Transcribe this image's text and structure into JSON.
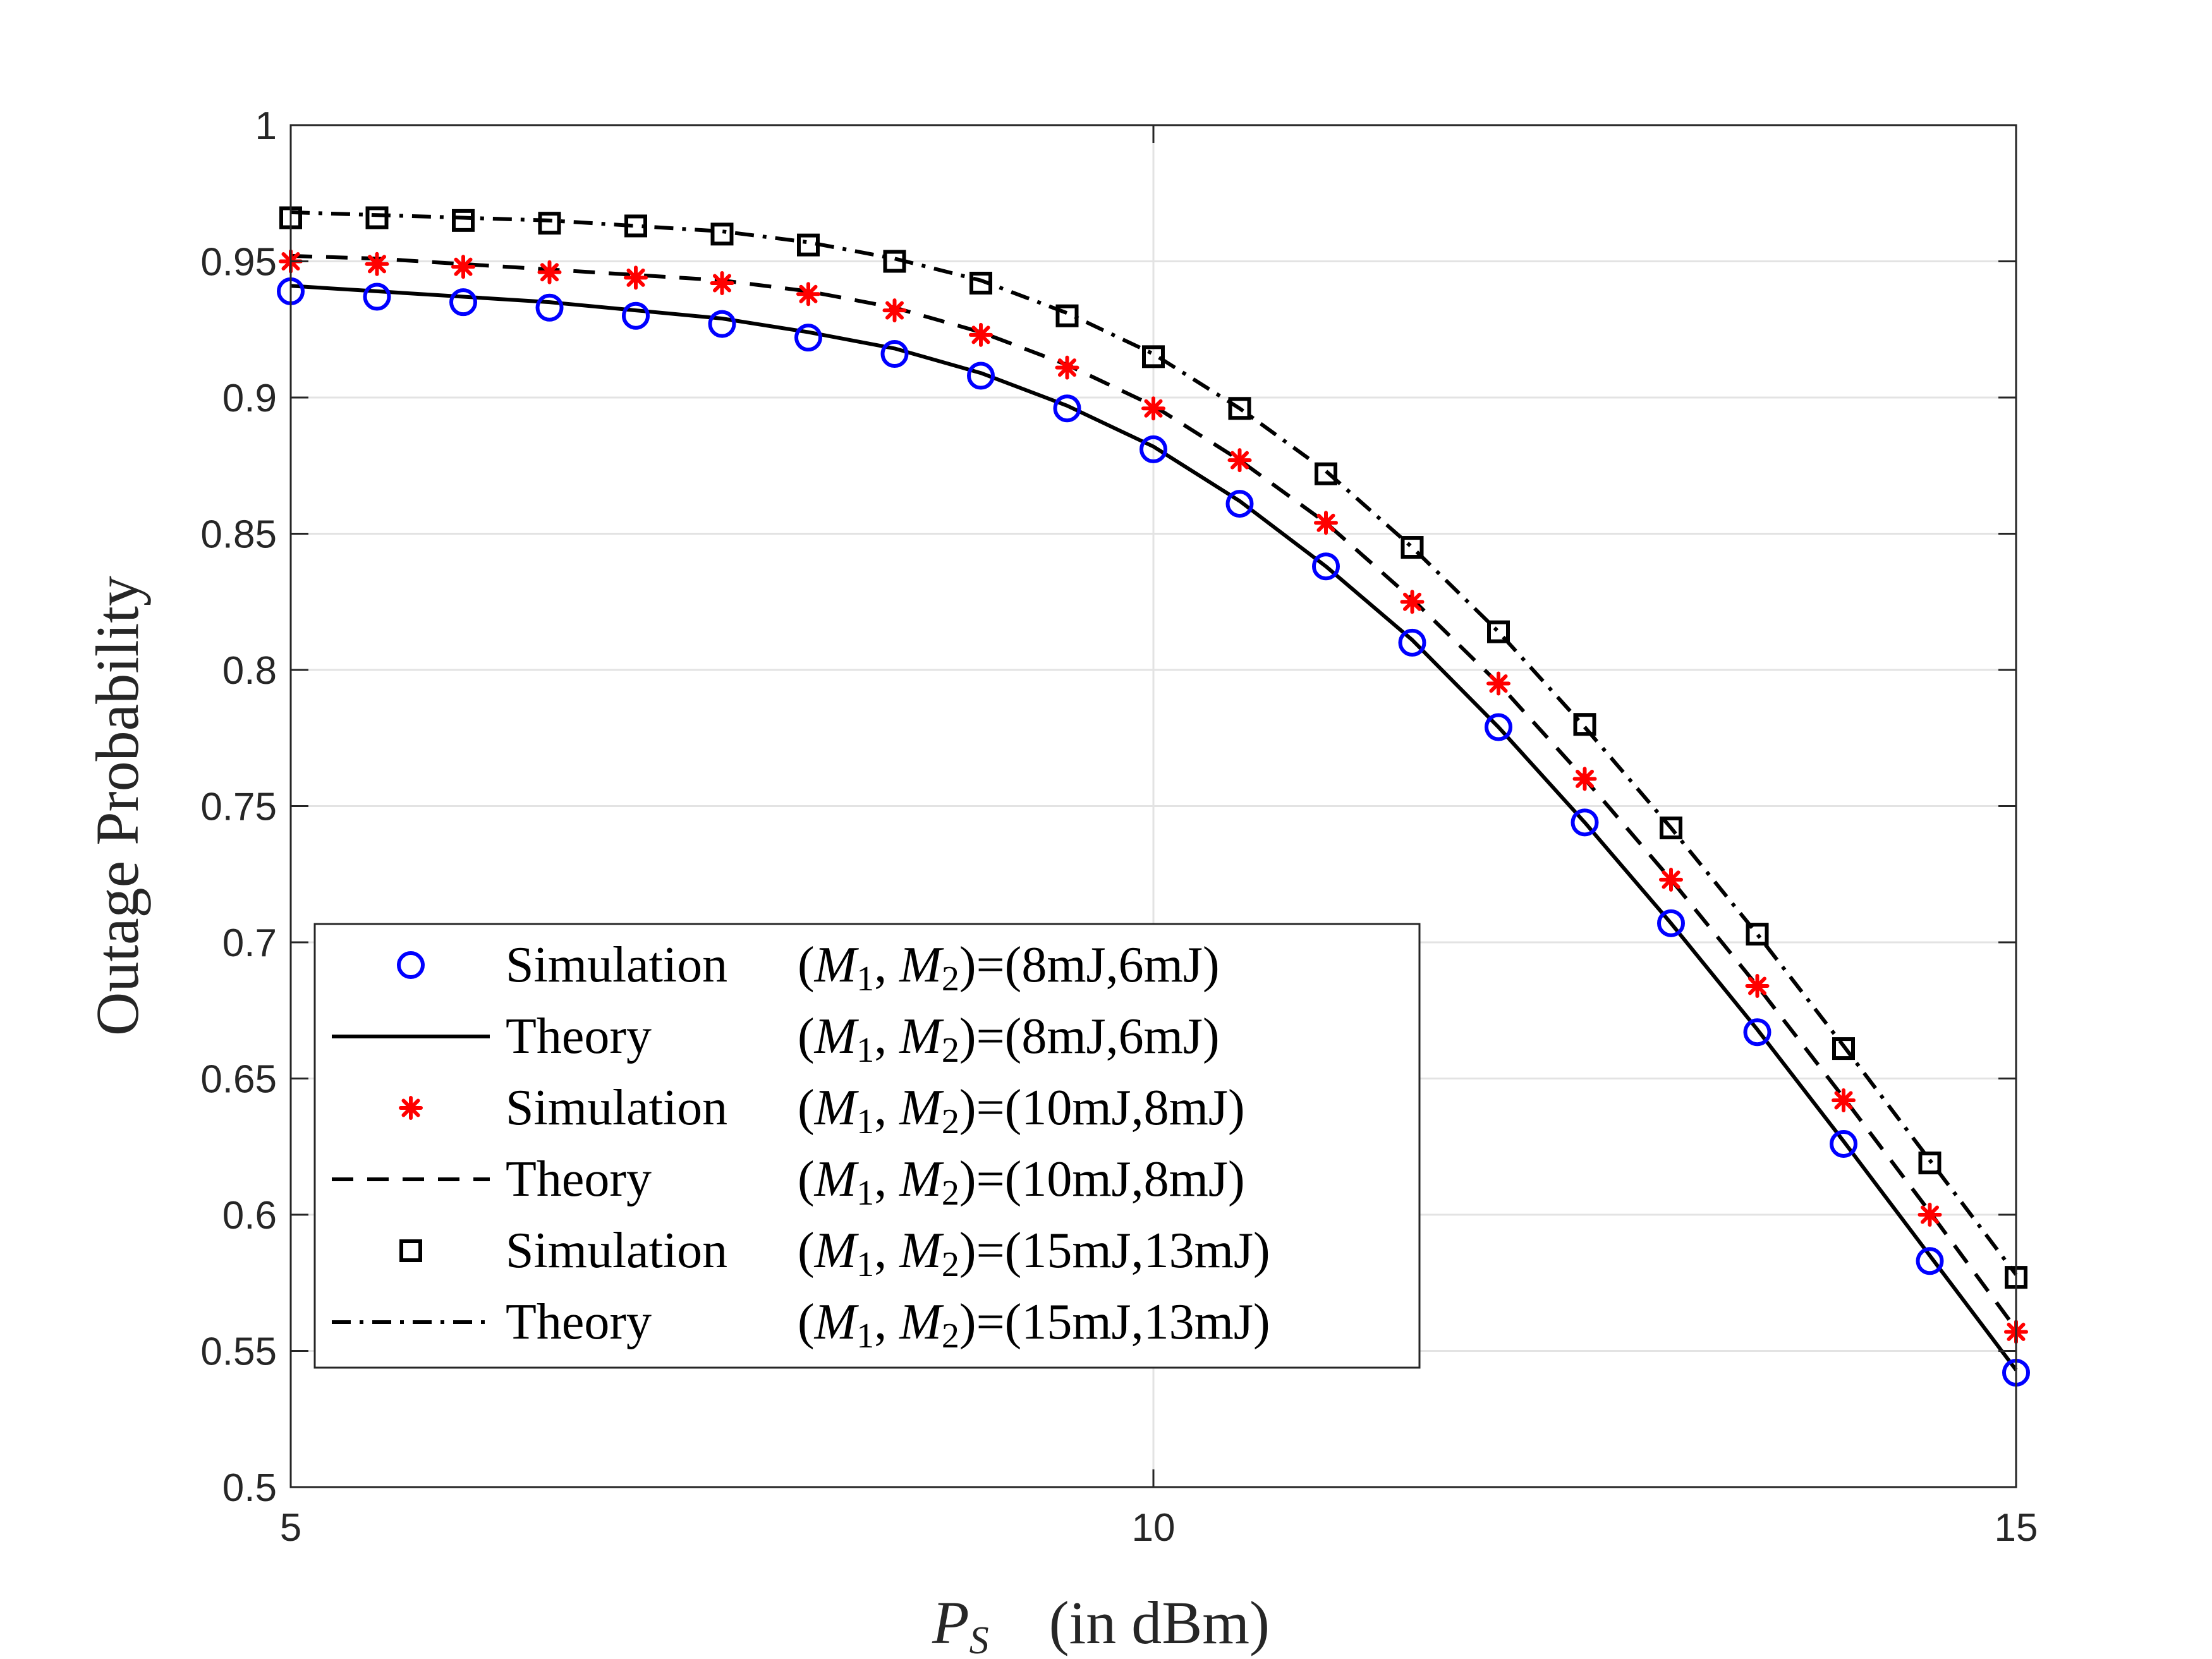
{
  "chart_data": {
    "type": "line",
    "title": "",
    "xlabel": "(in dBm)",
    "xlabel_symbol": "P",
    "xlabel_subscript": "S",
    "ylabel": "Outage Probability",
    "xlim": [
      5,
      15
    ],
    "ylim": [
      0.5,
      1
    ],
    "xticks": [
      5,
      10,
      15
    ],
    "xtick_labels": [
      "5",
      "10",
      "15"
    ],
    "yticks": [
      0.5,
      0.55,
      0.6,
      0.65,
      0.7,
      0.75,
      0.8,
      0.85,
      0.9,
      0.95,
      1
    ],
    "ytick_labels": [
      "0.5",
      "0.55",
      "0.6",
      "0.65",
      "0.7",
      "0.75",
      "0.8",
      "0.85",
      "0.9",
      "0.95",
      "1"
    ],
    "grid": true,
    "legend_position": "lower-left",
    "x": [
      5,
      5.5,
      6,
      6.5,
      7,
      7.5,
      8,
      8.5,
      9,
      9.5,
      10,
      10.5,
      11,
      11.5,
      12,
      12.5,
      13,
      13.5,
      14,
      14.5,
      15
    ],
    "series": [
      {
        "name": "Simulation (M1,M2)=(8mJ,6mJ)",
        "legend_kind": "Simulation",
        "legend_param": "(M1,M2)=(8mJ,6mJ)",
        "style": "marker",
        "marker": "circle",
        "color": "#0000ff",
        "values": [
          0.939,
          0.937,
          0.935,
          0.933,
          0.93,
          0.927,
          0.922,
          0.916,
          0.908,
          0.896,
          0.881,
          0.861,
          0.838,
          0.81,
          0.779,
          0.744,
          0.707,
          0.667,
          0.626,
          0.583,
          0.542
        ]
      },
      {
        "name": "Theory (M1,M2)=(8mJ,6mJ)",
        "legend_kind": "Theory",
        "legend_param": "(M1,M2)=(8mJ,6mJ)",
        "style": "solid",
        "color": "#000000",
        "values": [
          0.941,
          0.939,
          0.937,
          0.935,
          0.932,
          0.929,
          0.924,
          0.918,
          0.909,
          0.897,
          0.882,
          0.862,
          0.838,
          0.811,
          0.779,
          0.744,
          0.707,
          0.668,
          0.627,
          0.585,
          0.543
        ]
      },
      {
        "name": "Simulation (M1,M2)=(10mJ,8mJ)",
        "legend_kind": "Simulation",
        "legend_param": "(M1,M2)=(10mJ,8mJ)",
        "style": "marker",
        "marker": "asterisk",
        "color": "#ff0000",
        "values": [
          0.95,
          0.949,
          0.948,
          0.946,
          0.944,
          0.942,
          0.938,
          0.932,
          0.923,
          0.911,
          0.896,
          0.877,
          0.854,
          0.825,
          0.795,
          0.76,
          0.723,
          0.684,
          0.642,
          0.6,
          0.557
        ]
      },
      {
        "name": "Theory (M1,M2)=(10mJ,8mJ)",
        "legend_kind": "Theory",
        "legend_param": "(M1,M2)=(10mJ,8mJ)",
        "style": "dashed",
        "color": "#000000",
        "values": [
          0.952,
          0.951,
          0.949,
          0.947,
          0.945,
          0.943,
          0.939,
          0.933,
          0.924,
          0.912,
          0.897,
          0.877,
          0.854,
          0.826,
          0.795,
          0.76,
          0.723,
          0.684,
          0.643,
          0.601,
          0.558
        ]
      },
      {
        "name": "Simulation (M1,M2)=(15mJ,13mJ)",
        "legend_kind": "Simulation",
        "legend_param": "(M1,M2)=(15mJ,13mJ)",
        "style": "marker",
        "marker": "square",
        "color": "#000000",
        "values": [
          0.966,
          0.966,
          0.965,
          0.964,
          0.963,
          0.96,
          0.956,
          0.95,
          0.942,
          0.93,
          0.915,
          0.896,
          0.872,
          0.845,
          0.814,
          0.78,
          0.742,
          0.703,
          0.661,
          0.619,
          0.577
        ]
      },
      {
        "name": "Theory (M1,M2)=(15mJ,13mJ)",
        "legend_kind": "Theory",
        "legend_param": "(M1,M2)=(15mJ,13mJ)",
        "style": "dashdot",
        "color": "#000000",
        "values": [
          0.968,
          0.967,
          0.966,
          0.965,
          0.963,
          0.961,
          0.957,
          0.951,
          0.943,
          0.931,
          0.916,
          0.896,
          0.873,
          0.845,
          0.814,
          0.779,
          0.742,
          0.703,
          0.662,
          0.62,
          0.578
        ]
      }
    ]
  }
}
